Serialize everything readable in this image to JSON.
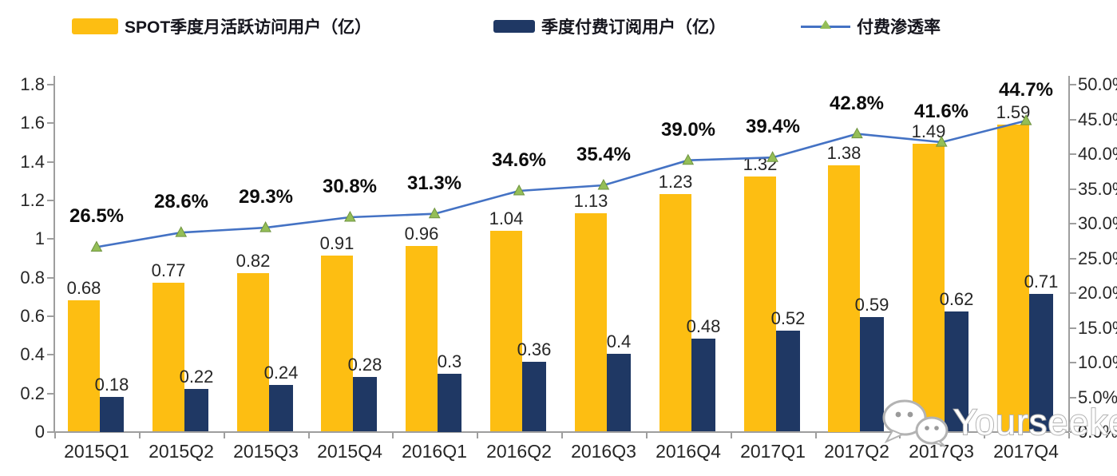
{
  "legend": [
    {
      "label": "SPOT季度月活跃访问用户（亿）",
      "type": "bar",
      "color": "#FDBE12"
    },
    {
      "label": "季度付费订阅用户（亿）",
      "type": "bar",
      "color": "#1F3864"
    },
    {
      "label": "付费渗透率",
      "type": "line",
      "color": "#4472C4",
      "marker_color": "#94BE57"
    }
  ],
  "chart_data": {
    "type": "combo",
    "categories": [
      "2015Q1",
      "2015Q2",
      "2015Q3",
      "2015Q4",
      "2016Q1",
      "2016Q2",
      "2016Q3",
      "2016Q4",
      "2017Q1",
      "2017Q2",
      "2017Q3",
      "2017Q4"
    ],
    "series": [
      {
        "name": "SPOT季度月活跃访问用户（亿）",
        "type": "bar",
        "axis": "left",
        "color": "#FDBE12",
        "values": [
          0.68,
          0.77,
          0.82,
          0.91,
          0.96,
          1.04,
          1.13,
          1.23,
          1.32,
          1.38,
          1.49,
          1.59
        ],
        "labels": [
          "0.68",
          "0.77",
          "0.82",
          "0.91",
          "0.96",
          "1.04",
          "1.13",
          "1.23",
          "1.32",
          "1.38",
          "1.49",
          "1.59"
        ]
      },
      {
        "name": "季度付费订阅用户（亿）",
        "type": "bar",
        "axis": "left",
        "color": "#1F3864",
        "values": [
          0.18,
          0.22,
          0.24,
          0.28,
          0.3,
          0.36,
          0.4,
          0.48,
          0.52,
          0.59,
          0.62,
          0.71
        ],
        "labels": [
          "0.18",
          "0.22",
          "0.24",
          "0.28",
          "0.3",
          "0.36",
          "0.4",
          "0.48",
          "0.52",
          "0.59",
          "0.62",
          "0.71"
        ]
      },
      {
        "name": "付费渗透率",
        "type": "line",
        "axis": "right",
        "color": "#4472C4",
        "marker_color": "#94BE57",
        "marker_stroke": "#6f9440",
        "values": [
          26.5,
          28.6,
          29.3,
          30.8,
          31.3,
          34.6,
          35.4,
          39.0,
          39.4,
          42.8,
          41.6,
          44.7
        ],
        "labels": [
          "26.5%",
          "28.6%",
          "29.3%",
          "30.8%",
          "31.3%",
          "34.6%",
          "35.4%",
          "39.0%",
          "39.4%",
          "42.8%",
          "41.6%",
          "44.7%"
        ]
      }
    ],
    "left_axis": {
      "min": 0,
      "max": 1.8,
      "ticks": [
        "1.8",
        "1.6",
        "1.4",
        "1.2",
        "1",
        "0.8",
        "0.6",
        "0.4",
        "0.2",
        "0"
      ]
    },
    "right_axis": {
      "min": 0,
      "max": 50,
      "ticks": [
        "50.0%",
        "45.0%",
        "40.0%",
        "35.0%",
        "30.0%",
        "25.0%",
        "20.0%",
        "15.0%",
        "10.0%",
        "5.0%",
        "0.0%"
      ]
    },
    "grid": false,
    "legend_position": "top"
  },
  "watermark": {
    "text": "Yourseeker",
    "icon": "wechat-bubbles-icon"
  }
}
